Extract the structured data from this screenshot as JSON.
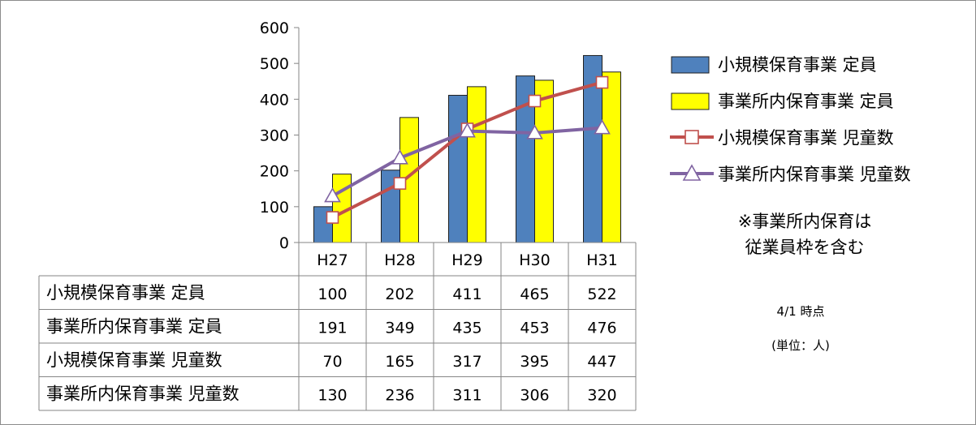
{
  "chart_data": {
    "type": "bar",
    "categories": [
      "H27",
      "H28",
      "H29",
      "H30",
      "H31"
    ],
    "ylim": [
      0,
      600
    ],
    "yticks": [
      0,
      100,
      200,
      300,
      400,
      500,
      600
    ],
    "grid": false,
    "legend_position": "right",
    "series": [
      {
        "name": "小規模保育事業 定員",
        "kind": "bar",
        "color": "#4f81bd",
        "values": [
          100,
          202,
          411,
          465,
          522
        ]
      },
      {
        "name": "事業所内保育事業 定員",
        "kind": "bar",
        "color": "#ffff00",
        "values": [
          191,
          349,
          435,
          453,
          476
        ]
      },
      {
        "name": "小規模保育事業 児童数",
        "kind": "line",
        "marker": "square",
        "color": "#c0504d",
        "values": [
          70,
          165,
          317,
          395,
          447
        ]
      },
      {
        "name": "事業所内保育事業 児童数",
        "kind": "line",
        "marker": "triangle",
        "color": "#8064a2",
        "values": [
          130,
          236,
          311,
          306,
          320
        ]
      }
    ],
    "annotations": [
      "※事業所内保育は",
      "従業員枠を含む",
      "4/1 時点",
      "(単位：人)"
    ]
  }
}
